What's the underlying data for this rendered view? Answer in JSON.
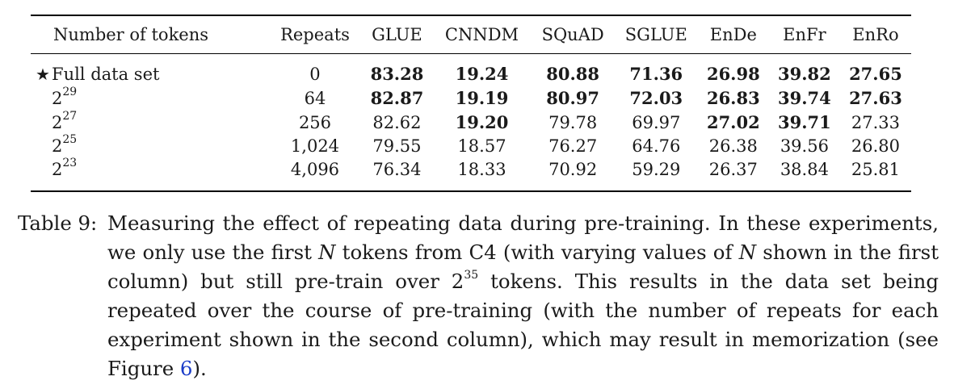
{
  "table": {
    "headers": [
      "Number of tokens",
      "Repeats",
      "GLUE",
      "CNNDM",
      "SQuAD",
      "SGLUE",
      "EnDe",
      "EnFr",
      "EnRo"
    ],
    "rows": [
      {
        "marker": "★",
        "label": "Full data set",
        "label_exp": "",
        "repeats": "0",
        "values": [
          "83.28",
          "19.24",
          "80.88",
          "71.36",
          "26.98",
          "39.82",
          "27.65"
        ],
        "bold": [
          true,
          true,
          true,
          true,
          true,
          true,
          true
        ]
      },
      {
        "marker": "",
        "label": "2",
        "label_exp": "29",
        "repeats": "64",
        "values": [
          "82.87",
          "19.19",
          "80.97",
          "72.03",
          "26.83",
          "39.74",
          "27.63"
        ],
        "bold": [
          true,
          true,
          true,
          true,
          true,
          true,
          true
        ]
      },
      {
        "marker": "",
        "label": "2",
        "label_exp": "27",
        "repeats": "256",
        "values": [
          "82.62",
          "19.20",
          "79.78",
          "69.97",
          "27.02",
          "39.71",
          "27.33"
        ],
        "bold": [
          false,
          true,
          false,
          false,
          true,
          true,
          false
        ]
      },
      {
        "marker": "",
        "label": "2",
        "label_exp": "25",
        "repeats": "1,024",
        "values": [
          "79.55",
          "18.57",
          "76.27",
          "64.76",
          "26.38",
          "39.56",
          "26.80"
        ],
        "bold": [
          false,
          false,
          false,
          false,
          false,
          false,
          false
        ]
      },
      {
        "marker": "",
        "label": "2",
        "label_exp": "23",
        "repeats": "4,096",
        "values": [
          "76.34",
          "18.33",
          "70.92",
          "59.29",
          "26.37",
          "38.84",
          "25.81"
        ],
        "bold": [
          false,
          false,
          false,
          false,
          false,
          false,
          false
        ]
      }
    ]
  },
  "caption": {
    "label": "Table 9:",
    "text_1": "Measuring the effect of repeating data during pre-training. In these experiments, we only use the first ",
    "var_1": "N",
    "text_2": " tokens from C4 (with varying values of ",
    "var_2": "N",
    "text_3": " shown in the first column) but still pre-train over 2",
    "exp": "35",
    "text_4": " tokens. This results in the data set being repeated over the course of pre-training (with the number of repeats for each experiment shown in the second column), which may result in memorization (see Figure ",
    "ref": "6",
    "text_5": ")."
  }
}
